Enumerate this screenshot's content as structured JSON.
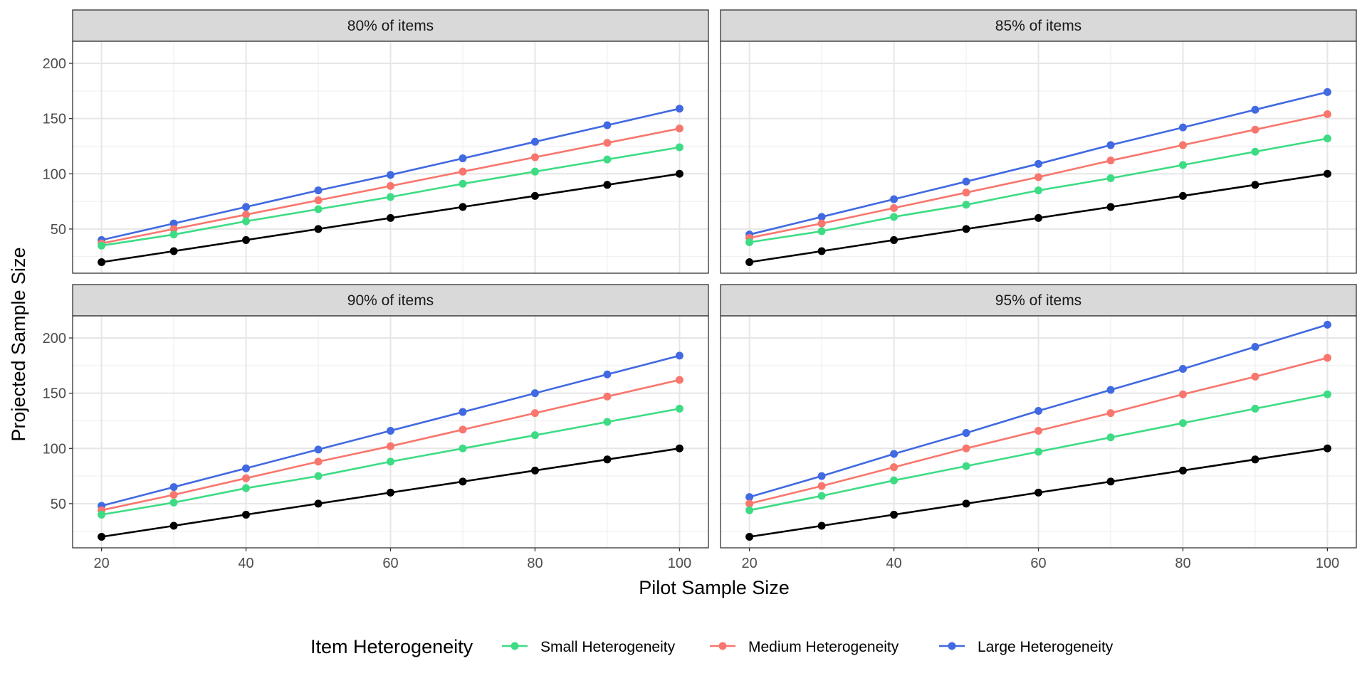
{
  "chart_data": {
    "type": "line",
    "xlabel": "Pilot Sample Size",
    "ylabel": "Projected Sample Size",
    "xlim": [
      16,
      104
    ],
    "ylim": [
      10,
      220
    ],
    "x_ticks": [
      20,
      40,
      60,
      80,
      100
    ],
    "y_ticks": [
      50,
      100,
      150,
      200
    ],
    "grid": true,
    "legend": {
      "title": "Item Heterogeneity",
      "position": "bottom",
      "entries": [
        {
          "name": "Small Heterogeneity",
          "color": "#3DDC84"
        },
        {
          "name": "Medium Heterogeneity",
          "color": "#F8766D"
        },
        {
          "name": "Large Heterogeneity",
          "color": "#4169E1"
        }
      ]
    },
    "x": [
      20,
      30,
      40,
      50,
      60,
      70,
      80,
      90,
      100
    ],
    "panels": [
      {
        "label": "80% of items",
        "series": [
          {
            "name": "Small Heterogeneity",
            "color": "#3DDC84",
            "values": [
              35,
              45,
              57,
              68,
              79,
              91,
              102,
              113,
              124
            ]
          },
          {
            "name": "Medium Heterogeneity",
            "color": "#F8766D",
            "values": [
              37,
              50,
              63,
              76,
              89,
              102,
              115,
              128,
              141
            ]
          },
          {
            "name": "Large Heterogeneity",
            "color": "#4169E1",
            "values": [
              40,
              55,
              70,
              85,
              99,
              114,
              129,
              144,
              159
            ]
          },
          {
            "color": "#000000",
            "values": [
              20,
              30,
              40,
              50,
              60,
              70,
              80,
              90,
              100
            ]
          }
        ]
      },
      {
        "label": "85% of items",
        "series": [
          {
            "name": "Small Heterogeneity",
            "color": "#3DDC84",
            "values": [
              38,
              48,
              61,
              72,
              85,
              96,
              108,
              120,
              132
            ]
          },
          {
            "name": "Medium Heterogeneity",
            "color": "#F8766D",
            "values": [
              42,
              55,
              69,
              83,
              97,
              112,
              126,
              140,
              154
            ]
          },
          {
            "name": "Large Heterogeneity",
            "color": "#4169E1",
            "values": [
              45,
              61,
              77,
              93,
              109,
              126,
              142,
              158,
              174
            ]
          },
          {
            "color": "#000000",
            "values": [
              20,
              30,
              40,
              50,
              60,
              70,
              80,
              90,
              100
            ]
          }
        ]
      },
      {
        "label": "90% of items",
        "series": [
          {
            "name": "Small Heterogeneity",
            "color": "#3DDC84",
            "values": [
              40,
              51,
              64,
              75,
              88,
              100,
              112,
              124,
              136
            ]
          },
          {
            "name": "Medium Heterogeneity",
            "color": "#F8766D",
            "values": [
              44,
              58,
              73,
              88,
              102,
              117,
              132,
              147,
              162
            ]
          },
          {
            "name": "Large Heterogeneity",
            "color": "#4169E1",
            "values": [
              48,
              65,
              82,
              99,
              116,
              133,
              150,
              167,
              184
            ]
          },
          {
            "color": "#000000",
            "values": [
              20,
              30,
              40,
              50,
              60,
              70,
              80,
              90,
              100
            ]
          }
        ]
      },
      {
        "label": "95% of items",
        "series": [
          {
            "name": "Small Heterogeneity",
            "color": "#3DDC84",
            "values": [
              44,
              57,
              71,
              84,
              97,
              110,
              123,
              136,
              149
            ]
          },
          {
            "name": "Medium Heterogeneity",
            "color": "#F8766D",
            "values": [
              50,
              66,
              83,
              100,
              116,
              132,
              149,
              165,
              182
            ]
          },
          {
            "name": "Large Heterogeneity",
            "color": "#4169E1",
            "values": [
              56,
              75,
              95,
              114,
              134,
              153,
              172,
              192,
              212
            ]
          },
          {
            "color": "#000000",
            "values": [
              20,
              30,
              40,
              50,
              60,
              70,
              80,
              90,
              100
            ]
          }
        ]
      }
    ]
  }
}
